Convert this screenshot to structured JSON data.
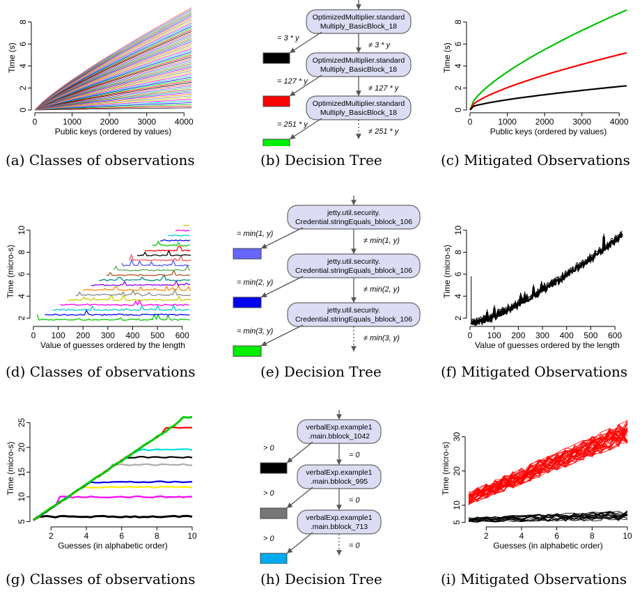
{
  "captions": [
    "(a) Classes of observations",
    "(b) Decision Tree",
    "(c) Mitigated Observations",
    "(d) Classes of observations",
    "(e) Decision Tree",
    "(f) Mitigated Observations",
    "(g) Classes of observations",
    "(h) Decision Tree",
    "(i) Mitigated Observations"
  ],
  "trees": [
    {
      "nodes": [
        [
          "OptimizedMultiplier.standard",
          "Multiply_BasicBlock_18"
        ],
        [
          "OptimizedMultiplier.standard",
          "Multiply_BasicBlock_18"
        ],
        [
          "OptimizedMultiplier.standard",
          "Multiply_BasicBlock_18"
        ]
      ],
      "left": [
        "= 3 * y",
        "= 127 * y",
        "= 251 * y"
      ],
      "right": [
        "≠ 3 * y",
        "≠ 127 * y",
        "≠ 251 * y"
      ],
      "colors": [
        "#000000",
        "#ff0000",
        "#00ee00"
      ]
    },
    {
      "nodes": [
        [
          "jetty.util.security.",
          "Credential.stringEquals_bblock_106"
        ],
        [
          "jetty.util.security.",
          "Credential.stringEquals_bblock_106"
        ],
        [
          "jetty.util.security.",
          "Credential.stringEquals_bblock_106"
        ]
      ],
      "left": [
        "= min(1, y)",
        "= min(2, y)",
        "= min(3, y)"
      ],
      "right": [
        "≠ min(1, y)",
        "≠ min(2, y)",
        "≠ min(3, y)"
      ],
      "colors": [
        "#6666ff",
        "#0000ee",
        "#00ee00"
      ]
    },
    {
      "nodes": [
        [
          "verbalExp.example1",
          ".main.bblock_1042"
        ],
        [
          "verbalExp.example1",
          ".main.bblock_995"
        ],
        [
          "verbalExp.example1",
          ".main.bblock_713"
        ]
      ],
      "left": [
        "> 0",
        "> 0",
        "> 0"
      ],
      "right": [
        "= 0",
        "= 0",
        "= 0"
      ],
      "colors": [
        "#000000",
        "#777777",
        "#00aaee"
      ]
    }
  ],
  "chart_data": [
    {
      "id": "a",
      "type": "line",
      "xlabel": "Public keys (ordered by values)",
      "ylabel": "Time (s)",
      "xlim": [
        0,
        4200
      ],
      "ylim": [
        0,
        9.5
      ],
      "xticks": [
        0,
        1000,
        2000,
        3000,
        4000
      ],
      "yticks": [
        0,
        2,
        4,
        6,
        8
      ],
      "series_count": 60,
      "max_values": [
        0.2,
        9.3
      ]
    },
    {
      "id": "c",
      "type": "line",
      "xlabel": "Public keys (ordered by values)",
      "ylabel": "Time (s)",
      "xlim": [
        0,
        4200
      ],
      "ylim": [
        0,
        9.5
      ],
      "xticks": [
        0,
        1000,
        2000,
        3000,
        4000
      ],
      "yticks": [
        0,
        2,
        4,
        6,
        8
      ],
      "series": [
        {
          "color": "#00c000",
          "end": 8.9
        },
        {
          "color": "#ff0000",
          "end": 5.0
        },
        {
          "color": "#000000",
          "end": 2.0
        }
      ]
    },
    {
      "id": "d",
      "type": "line",
      "xlabel": "Value of guesses ordered by the length",
      "ylabel": "Time (micro-s)",
      "xlim": [
        0,
        640
      ],
      "ylim": [
        1.5,
        11
      ],
      "xticks": [
        0,
        100,
        200,
        300,
        400,
        500,
        600
      ],
      "yticks": [
        2,
        4,
        6,
        8,
        10
      ],
      "levels_count": 20
    },
    {
      "id": "f",
      "type": "line",
      "xlabel": "Value of guesses ordered by the length",
      "ylabel": "Time (micro-s)",
      "xlim": [
        0,
        640
      ],
      "ylim": [
        1.5,
        11
      ],
      "xticks": [
        0,
        100,
        200,
        300,
        400,
        500,
        600
      ],
      "yticks": [
        2,
        4,
        6,
        8,
        10
      ],
      "y_start": 1.7,
      "y_end": 9.8
    },
    {
      "id": "g",
      "type": "line",
      "xlabel": "Guesses (in alphabetic order)",
      "ylabel": "Time (micro-s)",
      "xlim": [
        1,
        10
      ],
      "ylim": [
        4.5,
        27
      ],
      "xticks": [
        2,
        4,
        6,
        8,
        10
      ],
      "yticks": [
        5,
        10,
        15,
        20,
        25
      ],
      "plateaus": [
        6,
        10,
        12,
        13,
        16.5,
        18,
        19.5,
        24,
        26
      ]
    },
    {
      "id": "i",
      "type": "line",
      "xlabel": "Guesses (in alphabetic order)",
      "ylabel": "Time (micro-s)",
      "xlim": [
        1,
        10
      ],
      "ylim": [
        4.5,
        37
      ],
      "xticks": [
        2,
        4,
        6,
        8,
        10
      ],
      "yticks": [
        5,
        10,
        20,
        30
      ],
      "red_range": [
        [
          10,
          14
        ],
        [
          28,
          35
        ]
      ],
      "black_range": [
        [
          5,
          6.5
        ],
        [
          5.5,
          8.5
        ]
      ]
    }
  ]
}
